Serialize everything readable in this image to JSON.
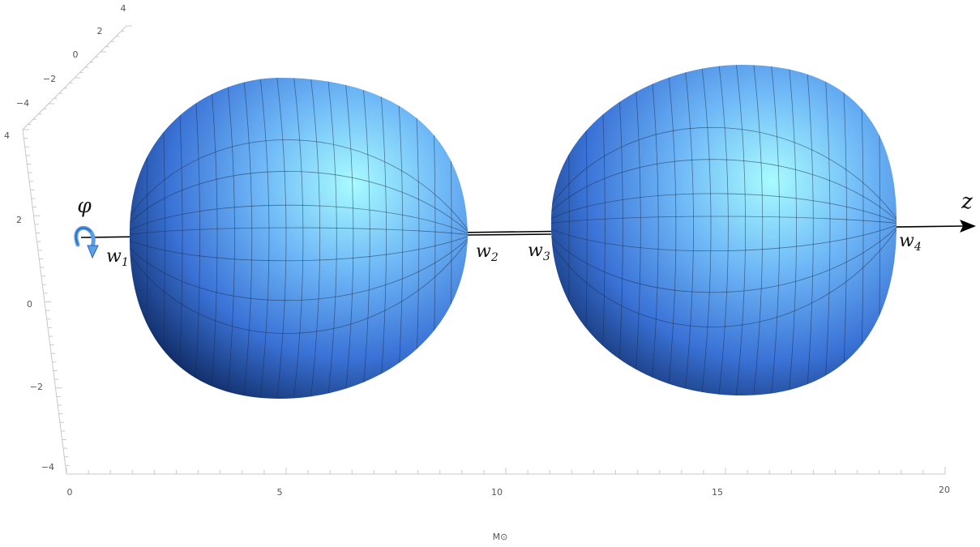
{
  "figure": {
    "colors": {
      "surface_light": "#9ff7ff",
      "surface_mid": "#4f8ff0",
      "surface_dark": "#0f2a63",
      "axis": "#000000",
      "frame": "#c8c8c8",
      "rotation_arrow": "#5aa0e6"
    },
    "axis_units_label": "M⊙",
    "horizontal_ticks": [
      "0",
      "5",
      "10",
      "15",
      "20"
    ],
    "vertical_ticks": [
      "4",
      "2",
      "0",
      "−2",
      "−4"
    ],
    "depth_ticks": [
      "4",
      "2",
      "0",
      "−2",
      "−4"
    ],
    "axis_name": "z",
    "rotation_symbol": "φ",
    "points": [
      {
        "base": "w",
        "sub": "1"
      },
      {
        "base": "w",
        "sub": "2"
      },
      {
        "base": "w",
        "sub": "3"
      },
      {
        "base": "w",
        "sub": "4"
      }
    ]
  }
}
